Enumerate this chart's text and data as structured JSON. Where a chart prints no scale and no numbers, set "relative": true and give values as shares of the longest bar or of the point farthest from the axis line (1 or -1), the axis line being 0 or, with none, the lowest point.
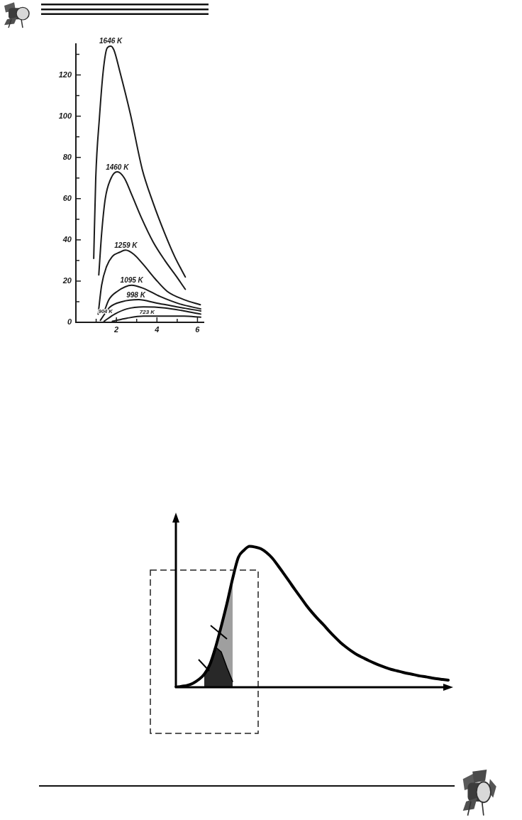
{
  "chart_data": [
    {
      "type": "line",
      "series": [
        {
          "name": "1646 K",
          "color": "#1a1a1a",
          "x": [
            0.88,
            0.98,
            1.16,
            1.35,
            1.54,
            1.72,
            1.88,
            2.16,
            2.69,
            3.28,
            3.81,
            4.39,
            4.87,
            5.4
          ],
          "values": [
            31,
            70,
            99,
            122,
            133,
            134,
            132,
            122,
            101,
            74,
            58,
            43,
            32,
            22
          ]
        },
        {
          "name": "1460 K",
          "color": "#1a1a1a",
          "x": [
            1.13,
            1.27,
            1.45,
            1.74,
            2.04,
            2.39,
            2.75,
            3.22,
            3.81,
            4.39,
            4.98,
            5.4
          ],
          "values": [
            23,
            43,
            60,
            70,
            73,
            70,
            62,
            51,
            39,
            30,
            22,
            16
          ]
        },
        {
          "name": "1259 K",
          "color": "#1a1a1a",
          "x": [
            1.1,
            1.27,
            1.51,
            1.8,
            2.16,
            2.45,
            2.86,
            3.33,
            3.92,
            4.51,
            5.34,
            6.14
          ],
          "values": [
            4,
            18,
            27,
            32,
            34,
            35,
            33,
            28,
            21,
            15,
            11,
            8.5
          ]
        },
        {
          "name": "1095 K",
          "color": "#1a1a1a",
          "x": [
            1.39,
            1.63,
            2.04,
            2.75,
            3.33,
            4.16,
            5.1,
            6.16
          ],
          "values": [
            5,
            11,
            15,
            18,
            16.5,
            12.5,
            9,
            6.5
          ]
        },
        {
          "name": "998 K",
          "color": "#1a1a1a",
          "x": [
            1.21,
            1.69,
            2.27,
            3.1,
            3.92,
            4.98,
            6.16
          ],
          "values": [
            1,
            7.5,
            10,
            11,
            9.5,
            7.5,
            5.5
          ]
        },
        {
          "name": "904 K",
          "color": "#1a1a1a",
          "x": [
            1.39,
            1.92,
            2.51,
            3.33,
            4.39,
            5.34,
            6.16
          ],
          "values": [
            0.5,
            4,
            6.5,
            7.5,
            7,
            5.5,
            4
          ]
        },
        {
          "name": "723 K",
          "color": "#1a1a1a",
          "x": [
            1.8,
            2.51,
            3.33,
            4.39,
            5.34,
            6.16
          ],
          "values": [
            0.5,
            2,
            3,
            3,
            3,
            2.5
          ]
        }
      ],
      "xlim": [
        0,
        6.3
      ],
      "xticks": [
        {
          "value": 1,
          "label": null
        },
        2,
        {
          "value": 3,
          "label": null
        },
        4,
        {
          "value": 5,
          "label": null
        },
        6
      ],
      "ylim": [
        0,
        135
      ],
      "yticks": [
        0,
        {
          "value": 10,
          "label": null
        },
        20,
        {
          "value": 30,
          "label": null
        },
        40,
        {
          "value": 50,
          "label": null
        },
        60,
        {
          "value": 70,
          "label": null
        },
        80,
        {
          "value": 90,
          "label": null
        },
        100,
        {
          "value": 110,
          "label": null
        },
        120,
        {
          "value": 130,
          "label": null
        }
      ],
      "grid": false,
      "legend": false,
      "marker": "none",
      "line_style": "solid"
    },
    {
      "type": "line",
      "relative": true,
      "categories": [
        null,
        null,
        null,
        null,
        null,
        null,
        null,
        null,
        null,
        null,
        null,
        null,
        null,
        null,
        null,
        null,
        null,
        null,
        null,
        null,
        null,
        null,
        null,
        null,
        null,
        null,
        null,
        null,
        null,
        null,
        null,
        null,
        null,
        null,
        null,
        null,
        null,
        null,
        null,
        null,
        null,
        null,
        null,
        null,
        null,
        null,
        null,
        null,
        null
      ],
      "series": [
        {
          "color": "#000000",
          "values": [
            0,
            0.007,
            0.013,
            0.028,
            0.054,
            0.092,
            0.162,
            0.285,
            0.434,
            0.595,
            0.771,
            0.921,
            0.973,
            1,
            0.995,
            0.983,
            0.955,
            0.916,
            0.863,
            0.807,
            0.75,
            0.692,
            0.637,
            0.581,
            0.531,
            0.486,
            0.444,
            0.399,
            0.357,
            0.318,
            0.285,
            0.255,
            0.229,
            0.209,
            0.189,
            0.171,
            0.154,
            0.139,
            0.126,
            0.116,
            0.106,
            0.097,
            0.089,
            0.08,
            0.074,
            0.067,
            0.06,
            0.055,
            0.05
          ]
        },
        {
          "type": "area",
          "color": "#404040",
          "values": [
            null,
            null,
            null,
            null,
            null,
            0.092,
            0.162,
            0.285,
            0.434,
            0.595,
            0.771,
            null,
            null,
            null,
            null,
            null,
            null,
            null,
            null,
            null,
            null,
            null,
            null,
            null,
            null,
            null,
            null,
            null,
            null,
            null,
            null,
            null,
            null,
            null,
            null,
            null,
            null,
            null,
            null,
            null,
            null,
            null,
            null,
            null,
            null,
            null,
            null,
            null,
            null
          ]
        },
        {
          "type": "area",
          "color": "#000000",
          "values": [
            null,
            null,
            null,
            null,
            null,
            0.092,
            0.162,
            0.285,
            0.25,
            0.14,
            0.04,
            null,
            null,
            null,
            null,
            null,
            null,
            null,
            null,
            null,
            null,
            null,
            null,
            null,
            null,
            null,
            null,
            null,
            null,
            null,
            null,
            null,
            null,
            null,
            null,
            null,
            null,
            null,
            null,
            null,
            null,
            null,
            null,
            null,
            null,
            null,
            null,
            null,
            null
          ]
        }
      ],
      "grid": false,
      "legend": false,
      "marker": "none",
      "line_style": "solid"
    }
  ]
}
